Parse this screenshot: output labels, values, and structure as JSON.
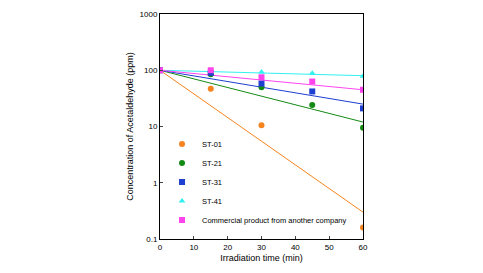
{
  "chart_data": {
    "type": "scatter",
    "x_label": "Irradiation time (min)",
    "y_label": "Concentration of Acetaldehyde (ppm)",
    "x": [
      0,
      15,
      30,
      45,
      60
    ],
    "fit_x": [
      0,
      60
    ],
    "series": [
      {
        "name": "ST-01",
        "color": "#f5841f",
        "marker": "circle",
        "values": [
          100,
          47,
          10.5,
          null,
          0.16
        ],
        "fit": [
          100,
          0.3
        ]
      },
      {
        "name": "ST-21",
        "color": "#138a13",
        "marker": "circle",
        "values": [
          100,
          85,
          50,
          24,
          9.5
        ],
        "fit": [
          100,
          12
        ]
      },
      {
        "name": "ST-31",
        "color": "#1f3fd0",
        "marker": "square",
        "values": [
          100,
          90,
          58,
          42,
          21
        ],
        "fit": [
          100,
          25
        ]
      },
      {
        "name": "ST-41",
        "color": "#33f0f0",
        "marker": "triangle-up",
        "values": [
          100,
          95,
          93,
          88,
          78
        ],
        "fit": [
          100,
          80
        ]
      },
      {
        "name": "Commercial product from another company",
        "color": "#ff44ee",
        "marker": "square",
        "values": [
          100,
          100,
          75,
          63,
          45
        ],
        "fit": [
          100,
          45
        ]
      }
    ],
    "xlim": [
      0,
      60
    ],
    "xticks": [
      0,
      10,
      20,
      30,
      40,
      50,
      60
    ],
    "ylim": [
      0.1,
      1000
    ],
    "yticks": [
      0.1,
      1,
      10,
      100,
      1000
    ],
    "log": "y",
    "grid": false,
    "legend": "lower left"
  }
}
